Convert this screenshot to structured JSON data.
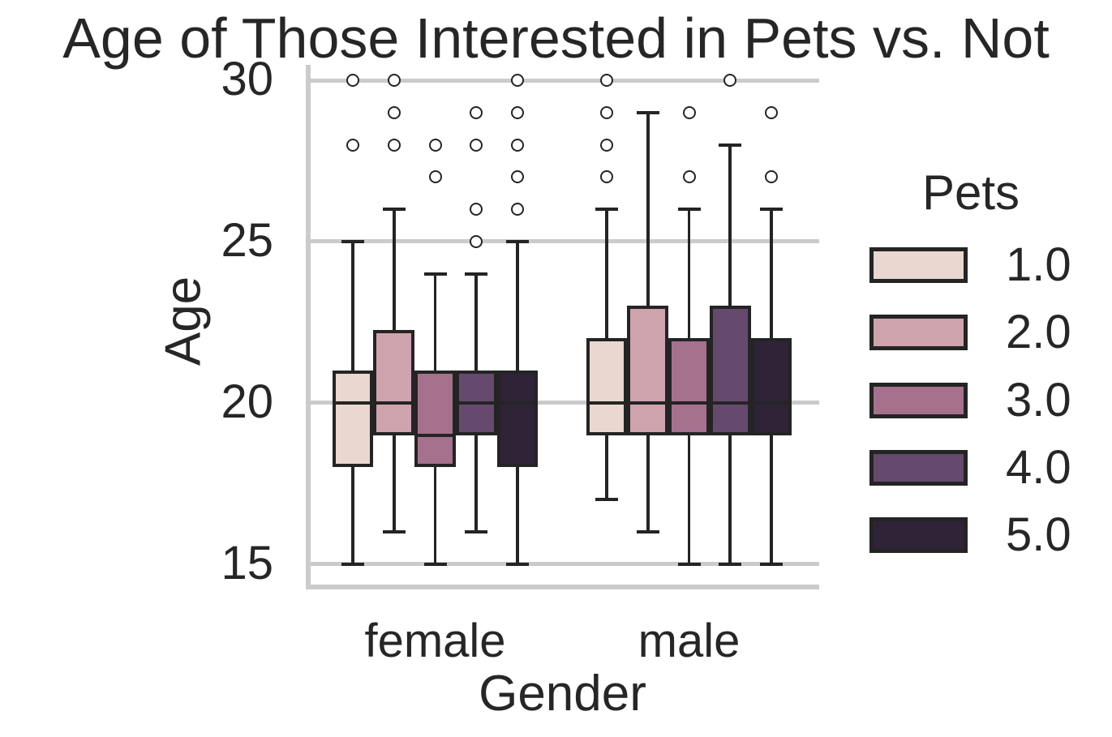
{
  "chart_data": {
    "type": "boxplot",
    "title": "Age of Those Interested in Pets vs. Not",
    "xlabel": "Gender",
    "ylabel": "Age",
    "categories": [
      "female",
      "male"
    ],
    "ytick_labels": [
      "30",
      "25",
      "20",
      "15"
    ],
    "ytick_values": [
      30,
      25,
      20,
      15
    ],
    "ylim": [
      14.2,
      30.5
    ],
    "grid": true,
    "legend": {
      "title": "Pets",
      "position": "right",
      "levels": [
        "1.0",
        "2.0",
        "3.0",
        "4.0",
        "5.0"
      ]
    },
    "palette": [
      "#e9d7d0",
      "#cfa3ad",
      "#a5718d",
      "#664a6e",
      "#2f2338"
    ],
    "colors": {
      "edge": "#242424",
      "grid": "#cbcbcb",
      "text": "#262626",
      "outlier_fill": "#ffffff"
    },
    "series": [
      {
        "gender": "female",
        "pets": "1.0",
        "whisker_low": 15,
        "q1": 18,
        "median": 20,
        "q3": 21,
        "whisker_high": 25,
        "outliers": [
          28,
          30
        ]
      },
      {
        "gender": "female",
        "pets": "2.0",
        "whisker_low": 16,
        "q1": 19,
        "median": 20,
        "q3": 22.25,
        "whisker_high": 26,
        "outliers": [
          28,
          29,
          30
        ]
      },
      {
        "gender": "female",
        "pets": "3.0",
        "whisker_low": 15,
        "q1": 18,
        "median": 19,
        "q3": 21,
        "whisker_high": 24,
        "outliers": [
          27,
          28
        ]
      },
      {
        "gender": "female",
        "pets": "4.0",
        "whisker_low": 16,
        "q1": 19,
        "median": 20,
        "q3": 21,
        "whisker_high": 24,
        "outliers": [
          25,
          26,
          28,
          29
        ]
      },
      {
        "gender": "female",
        "pets": "5.0",
        "whisker_low": 15,
        "q1": 18,
        "median": 20,
        "q3": 21,
        "whisker_high": 25,
        "outliers": [
          26,
          27,
          28,
          29,
          30
        ]
      },
      {
        "gender": "male",
        "pets": "1.0",
        "whisker_low": 17,
        "q1": 19,
        "median": 20,
        "q3": 22,
        "whisker_high": 26,
        "outliers": [
          27,
          28,
          29,
          30
        ]
      },
      {
        "gender": "male",
        "pets": "2.0",
        "whisker_low": 16,
        "q1": 19,
        "median": 20,
        "q3": 23,
        "whisker_high": 29,
        "outliers": []
      },
      {
        "gender": "male",
        "pets": "3.0",
        "whisker_low": 15,
        "q1": 19,
        "median": 20,
        "q3": 22,
        "whisker_high": 26,
        "outliers": [
          27,
          29
        ]
      },
      {
        "gender": "male",
        "pets": "4.0",
        "whisker_low": 15,
        "q1": 19,
        "median": 20,
        "q3": 23,
        "whisker_high": 28,
        "outliers": [
          30
        ]
      },
      {
        "gender": "male",
        "pets": "5.0",
        "whisker_low": 15,
        "q1": 19,
        "median": 20,
        "q3": 22,
        "whisker_high": 26,
        "outliers": [
          27,
          29
        ]
      }
    ]
  }
}
